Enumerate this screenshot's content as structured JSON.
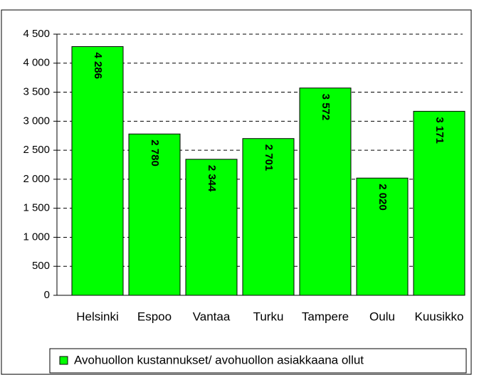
{
  "chart_data": {
    "type": "bar",
    "categories": [
      "Helsinki",
      "Espoo",
      "Vantaa",
      "Turku",
      "Tampere",
      "Oulu",
      "Kuusikko"
    ],
    "series": [
      {
        "name": "Avohuollon kustannukset/ avohuollon asiakkaana ollut",
        "color": "#00ff00",
        "values": [
          4286,
          2780,
          2344,
          2701,
          3572,
          2020,
          3171
        ],
        "value_labels": [
          "4 286",
          "2 780",
          "2 344",
          "2 701",
          "3 572",
          "2 020",
          "3 171"
        ]
      }
    ],
    "ylim": [
      0,
      4500
    ],
    "yticks": [
      0,
      500,
      {
        "value": 1000,
        "label": "1 000"
      },
      {
        "value": 1500,
        "label": "1 500"
      },
      {
        "value": 2000,
        "label": "2 000"
      },
      {
        "value": 2500,
        "label": "2 500"
      },
      {
        "value": 3000,
        "label": "3 000"
      },
      {
        "value": 3500,
        "label": "3 500"
      },
      {
        "value": 4000,
        "label": "4 000"
      },
      {
        "value": 4500,
        "label": "4 500"
      }
    ],
    "grid": true,
    "legend": "bottom"
  }
}
